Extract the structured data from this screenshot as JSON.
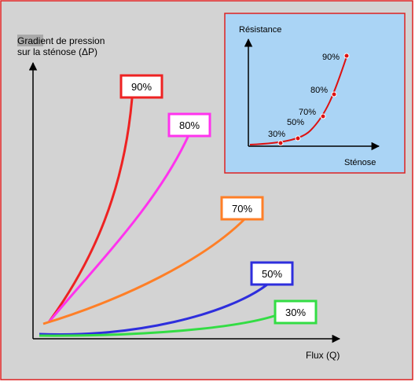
{
  "main": {
    "y_axis_label_line1": "Gradient de pression",
    "y_axis_label_line2": "sur la sténose (ΔP)",
    "x_axis_label": "Flux (Q)",
    "curves": [
      {
        "label": "90%",
        "color": "#ee2222"
      },
      {
        "label": "80%",
        "color": "#ff33ee"
      },
      {
        "label": "70%",
        "color": "#ff7f27"
      },
      {
        "label": "50%",
        "color": "#2e2edd"
      },
      {
        "label": "30%",
        "color": "#33dd44"
      }
    ]
  },
  "inset": {
    "y_axis_label": "Résistance",
    "x_axis_label": "Sténose",
    "points": [
      "90%",
      "80%",
      "70%",
      "50%",
      "30%"
    ],
    "curve_color": "#dd1111",
    "background": "#aad4f5",
    "border_color": "#dd2222"
  },
  "colors": {
    "outer_border": "#dd2222",
    "main_background": "#d3d3d3",
    "y_label_highlight": "#a9a9a9"
  },
  "icons": {
    "axis_arrow": "arrowhead"
  }
}
